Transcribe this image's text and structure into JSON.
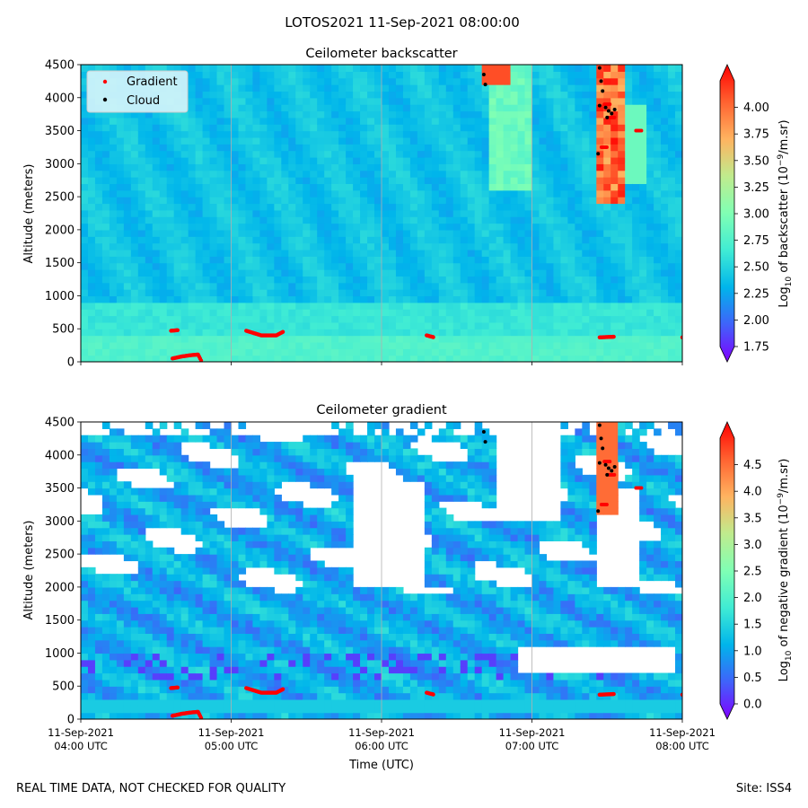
{
  "figure": {
    "title": "LOTOS2021 11-Sep-2021 08:00:00",
    "footer_left": "REAL TIME DATA, NOT CHECKED FOR QUALITY",
    "footer_right": "Site: ISS4"
  },
  "chart_data": [
    {
      "type": "heatmap",
      "title": "Ceilometer backscatter",
      "ylabel": "Altitude (meters)",
      "xlabel": "",
      "ylim": [
        0,
        4500
      ],
      "yticks": [
        0,
        500,
        1000,
        1500,
        2000,
        2500,
        3000,
        3500,
        4000,
        4500
      ],
      "x_range": [
        "2021-09-11 04:00 UTC",
        "2021-09-11 08:00 UTC"
      ],
      "xticks": [
        {
          "date": "11-Sep-2021",
          "time": "04:00 UTC",
          "hour": 4
        },
        {
          "date": "11-Sep-2021",
          "time": "05:00 UTC",
          "hour": 5
        },
        {
          "date": "11-Sep-2021",
          "time": "06:00 UTC",
          "hour": 6
        },
        {
          "date": "11-Sep-2021",
          "time": "07:00 UTC",
          "hour": 7
        },
        {
          "date": "11-Sep-2021",
          "time": "08:00 UTC",
          "hour": 8
        }
      ],
      "xtick_labels_shown": false,
      "grid": "vertical lines at ticks",
      "legend": {
        "placement": "top-left",
        "entries": [
          {
            "name": "Gradient",
            "color": "#ff0000"
          },
          {
            "name": "Cloud",
            "color": "#000000"
          }
        ]
      },
      "colorbar": {
        "label": "Log10 of backscatter (10^-9/m.sr)",
        "range": [
          1.75,
          4.25
        ],
        "ticks": [
          "1.75",
          "2.00",
          "2.25",
          "2.50",
          "2.75",
          "3.00",
          "3.25",
          "3.50",
          "3.75",
          "4.00"
        ],
        "tick_values": [
          1.75,
          2.0,
          2.25,
          2.5,
          2.75,
          3.0,
          3.25,
          3.5,
          3.75,
          4.0
        ],
        "colormap": "rainbow",
        "extend": "both"
      },
      "gradient_series": [
        {
          "hour": 4.0,
          "alt": 390
        },
        {
          "hour": 4.2,
          "alt": 400
        },
        {
          "hour": 4.4,
          "alt": 430
        },
        {
          "hour": 4.6,
          "alt": 470
        },
        {
          "hour": 4.65,
          "alt": 480
        },
        {
          "hour": 4.8,
          "alt": 610
        },
        {
          "hour": 4.95,
          "alt": 540
        },
        {
          "hour": 5.1,
          "alt": 470
        },
        {
          "hour": 5.2,
          "alt": 400
        },
        {
          "hour": 5.3,
          "alt": 400
        },
        {
          "hour": 5.35,
          "alt": 460
        },
        {
          "hour": 5.5,
          "alt": 450
        },
        {
          "hour": 5.8,
          "alt": 440
        },
        {
          "hour": 6.05,
          "alt": 430
        },
        {
          "hour": 6.3,
          "alt": 400
        },
        {
          "hour": 6.35,
          "alt": 370
        },
        {
          "hour": 6.5,
          "alt": 400
        },
        {
          "hour": 6.65,
          "alt": 400
        },
        {
          "hour": 6.85,
          "alt": 360
        },
        {
          "hour": 7.1,
          "alt": 370
        },
        {
          "hour": 7.3,
          "alt": 340
        },
        {
          "hour": 7.45,
          "alt": 370
        },
        {
          "hour": 7.55,
          "alt": 380
        },
        {
          "hour": 7.7,
          "alt": 370
        },
        {
          "hour": 7.85,
          "alt": 320
        },
        {
          "hour": 8.0,
          "alt": 370
        }
      ],
      "gradient_low_series": [
        {
          "hour": 4.61,
          "alt": 50
        },
        {
          "hour": 4.67,
          "alt": 80
        },
        {
          "hour": 4.73,
          "alt": 100
        },
        {
          "hour": 4.78,
          "alt": 110
        },
        {
          "hour": 4.8,
          "alt": 20
        }
      ],
      "gradient_upper_series": [
        {
          "hour": 7.48,
          "alt": 3250
        },
        {
          "hour": 7.5,
          "alt": 3900
        },
        {
          "hour": 7.53,
          "alt": 3700
        },
        {
          "hour": 7.71,
          "alt": 3500
        }
      ],
      "cloud_series": [
        {
          "hour": 6.68,
          "alt": 4350
        },
        {
          "hour": 6.69,
          "alt": 4200
        },
        {
          "hour": 7.45,
          "alt": 4450
        },
        {
          "hour": 7.46,
          "alt": 4250
        },
        {
          "hour": 7.47,
          "alt": 4100
        },
        {
          "hour": 7.45,
          "alt": 3880
        },
        {
          "hour": 7.49,
          "alt": 3850
        },
        {
          "hour": 7.51,
          "alt": 3800
        },
        {
          "hour": 7.53,
          "alt": 3760
        },
        {
          "hour": 7.5,
          "alt": 3700
        },
        {
          "hour": 7.55,
          "alt": 3820
        },
        {
          "hour": 7.44,
          "alt": 3150
        }
      ]
    },
    {
      "type": "heatmap",
      "title": "Ceilometer gradient",
      "ylabel": "Altitude (meters)",
      "xlabel": "Time (UTC)",
      "ylim": [
        0,
        4500
      ],
      "yticks": [
        0,
        500,
        1000,
        1500,
        2000,
        2500,
        3000,
        3500,
        4000,
        4500
      ],
      "x_range": [
        "2021-09-11 04:00 UTC",
        "2021-09-11 08:00 UTC"
      ],
      "xticks": [
        {
          "date": "11-Sep-2021",
          "time": "04:00 UTC",
          "hour": 4
        },
        {
          "date": "11-Sep-2021",
          "time": "05:00 UTC",
          "hour": 5
        },
        {
          "date": "11-Sep-2021",
          "time": "06:00 UTC",
          "hour": 6
        },
        {
          "date": "11-Sep-2021",
          "time": "07:00 UTC",
          "hour": 7
        },
        {
          "date": "11-Sep-2021",
          "time": "08:00 UTC",
          "hour": 8
        }
      ],
      "xtick_labels_shown": true,
      "grid": "vertical lines at ticks",
      "colorbar": {
        "label": "Log10 of negative gradient (10^-9/m.sr)",
        "range": [
          0.0,
          5.0
        ],
        "ticks": [
          "0.0",
          "0.5",
          "1.0",
          "1.5",
          "2.0",
          "2.5",
          "3.0",
          "3.5",
          "4.0",
          "4.5"
        ],
        "tick_values": [
          0.0,
          0.5,
          1.0,
          1.5,
          2.0,
          2.5,
          3.0,
          3.5,
          4.0,
          4.5
        ],
        "colormap": "rainbow",
        "extend": "both"
      },
      "gradient_series": [
        {
          "hour": 4.0,
          "alt": 390
        },
        {
          "hour": 4.2,
          "alt": 400
        },
        {
          "hour": 4.4,
          "alt": 430
        },
        {
          "hour": 4.6,
          "alt": 470
        },
        {
          "hour": 4.65,
          "alt": 480
        },
        {
          "hour": 4.8,
          "alt": 610
        },
        {
          "hour": 4.95,
          "alt": 540
        },
        {
          "hour": 5.1,
          "alt": 470
        },
        {
          "hour": 5.2,
          "alt": 400
        },
        {
          "hour": 5.3,
          "alt": 400
        },
        {
          "hour": 5.35,
          "alt": 460
        },
        {
          "hour": 5.5,
          "alt": 450
        },
        {
          "hour": 5.8,
          "alt": 440
        },
        {
          "hour": 6.05,
          "alt": 430
        },
        {
          "hour": 6.3,
          "alt": 400
        },
        {
          "hour": 6.35,
          "alt": 370
        },
        {
          "hour": 6.5,
          "alt": 400
        },
        {
          "hour": 6.65,
          "alt": 400
        },
        {
          "hour": 6.85,
          "alt": 360
        },
        {
          "hour": 7.1,
          "alt": 370
        },
        {
          "hour": 7.3,
          "alt": 340
        },
        {
          "hour": 7.45,
          "alt": 370
        },
        {
          "hour": 7.55,
          "alt": 380
        },
        {
          "hour": 7.7,
          "alt": 370
        },
        {
          "hour": 7.85,
          "alt": 320
        },
        {
          "hour": 8.0,
          "alt": 370
        }
      ],
      "gradient_low_series": [
        {
          "hour": 4.61,
          "alt": 50
        },
        {
          "hour": 4.67,
          "alt": 80
        },
        {
          "hour": 4.73,
          "alt": 100
        },
        {
          "hour": 4.78,
          "alt": 110
        },
        {
          "hour": 4.8,
          "alt": 20
        }
      ],
      "gradient_upper_series": [
        {
          "hour": 7.48,
          "alt": 3250
        },
        {
          "hour": 7.5,
          "alt": 3900
        },
        {
          "hour": 7.53,
          "alt": 3700
        },
        {
          "hour": 7.71,
          "alt": 3500
        }
      ],
      "cloud_series": [
        {
          "hour": 6.68,
          "alt": 4350
        },
        {
          "hour": 6.69,
          "alt": 4200
        },
        {
          "hour": 7.45,
          "alt": 4450
        },
        {
          "hour": 7.46,
          "alt": 4250
        },
        {
          "hour": 7.47,
          "alt": 4100
        },
        {
          "hour": 7.45,
          "alt": 3880
        },
        {
          "hour": 7.49,
          "alt": 3850
        },
        {
          "hour": 7.51,
          "alt": 3800
        },
        {
          "hour": 7.53,
          "alt": 3760
        },
        {
          "hour": 7.5,
          "alt": 3700
        },
        {
          "hour": 7.55,
          "alt": 3820
        },
        {
          "hour": 7.44,
          "alt": 3150
        }
      ]
    }
  ]
}
